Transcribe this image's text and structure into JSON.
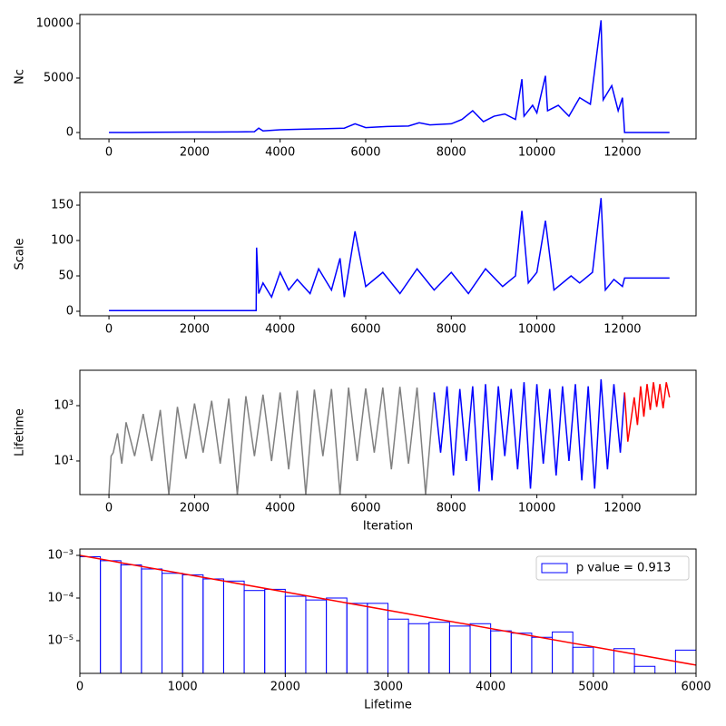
{
  "chart_data": [
    {
      "type": "line",
      "ylabel": "Nc",
      "xlim": [
        -680,
        13720
      ],
      "xticks": [
        0,
        2000,
        4000,
        6000,
        8000,
        10000,
        12000
      ],
      "ylim": [
        -580,
        10830
      ],
      "yticks": [
        0,
        5000,
        10000
      ],
      "series": [
        {
          "color": "#0000ff",
          "x": [
            0,
            500,
            1000,
            1500,
            2000,
            2500,
            3000,
            3400,
            3500,
            3600,
            4000,
            4500,
            5000,
            5500,
            5750,
            6000,
            6500,
            7000,
            7250,
            7500,
            8000,
            8250,
            8500,
            8750,
            9000,
            9250,
            9500,
            9650,
            9700,
            9900,
            10000,
            10200,
            10250,
            10500,
            10750,
            11000,
            11250,
            11500,
            11550,
            11750,
            11900,
            12000,
            12050,
            13100
          ],
          "values": [
            0,
            0,
            20,
            30,
            40,
            50,
            60,
            80,
            400,
            150,
            250,
            300,
            350,
            400,
            800,
            450,
            550,
            600,
            900,
            700,
            800,
            1200,
            2000,
            1000,
            1500,
            1700,
            1200,
            4900,
            1500,
            2500,
            1800,
            5200,
            2000,
            2500,
            1500,
            3200,
            2600,
            10300,
            3000,
            4300,
            2000,
            3200,
            0,
            0
          ]
        }
      ]
    },
    {
      "type": "line",
      "ylabel": "Scale",
      "xlim": [
        -680,
        13720
      ],
      "xticks": [
        0,
        2000,
        4000,
        6000,
        8000,
        10000,
        12000
      ],
      "ylim": [
        -6.4,
        168
      ],
      "yticks": [
        0,
        50,
        100,
        150
      ],
      "series": [
        {
          "color": "#0000ff",
          "x": [
            0,
            3440,
            3450,
            3500,
            3600,
            3800,
            4000,
            4200,
            4400,
            4700,
            4900,
            5200,
            5400,
            5500,
            5750,
            6000,
            6400,
            6800,
            7200,
            7600,
            8000,
            8400,
            8800,
            9200,
            9500,
            9650,
            9800,
            10000,
            10200,
            10400,
            10800,
            11000,
            11300,
            11500,
            11600,
            11800,
            12000,
            12050,
            13100
          ],
          "values": [
            1,
            1,
            90,
            25,
            40,
            20,
            55,
            30,
            45,
            25,
            60,
            30,
            75,
            20,
            113,
            35,
            55,
            25,
            60,
            30,
            55,
            25,
            60,
            35,
            50,
            142,
            40,
            55,
            128,
            30,
            50,
            40,
            55,
            160,
            30,
            45,
            35,
            47,
            47
          ]
        }
      ]
    },
    {
      "type": "line",
      "ylabel": "Lifetime",
      "xlabel": "Iteration",
      "yscale": "log",
      "xlim": [
        -680,
        13720
      ],
      "xticks": [
        0,
        2000,
        4000,
        6000,
        8000,
        10000,
        12000
      ],
      "ylim": [
        0.61,
        19000
      ],
      "yticks": [
        {
          "value": 10,
          "label": "10¹"
        },
        {
          "value": 1000,
          "label": "10³"
        }
      ],
      "series": [
        {
          "color": "#808080",
          "x": [
            0,
            50,
            100,
            200,
            300,
            400,
            600,
            800,
            1000,
            1200,
            1400,
            1600,
            1800,
            2000,
            2200,
            2400,
            2600,
            2800,
            3000,
            3200,
            3400,
            3600,
            3800,
            4000,
            4200,
            4400,
            4600,
            4800,
            5000,
            5200,
            5400,
            5600,
            5800,
            6000,
            6200,
            6400,
            6600,
            6800,
            7000,
            7200,
            7400,
            7600
          ],
          "values": [
            0.61,
            15,
            20,
            100,
            8,
            250,
            15,
            500,
            10,
            700,
            0.61,
            900,
            12,
            1200,
            20,
            1500,
            8,
            1800,
            0.61,
            2200,
            15,
            2500,
            10,
            3000,
            5,
            3500,
            0.61,
            3800,
            15,
            4000,
            0.61,
            4500,
            10,
            4200,
            20,
            4500,
            5,
            4800,
            8,
            4500,
            0.61,
            3000
          ]
        },
        {
          "color": "#0000ff",
          "x": [
            7600,
            7750,
            7900,
            8050,
            8200,
            8350,
            8500,
            8650,
            8800,
            8950,
            9100,
            9250,
            9400,
            9550,
            9700,
            9850,
            10000,
            10150,
            10300,
            10450,
            10600,
            10750,
            10900,
            11050,
            11200,
            11350,
            11500,
            11650,
            11800,
            11950,
            12050
          ],
          "values": [
            3000,
            20,
            5000,
            3,
            4000,
            10,
            5000,
            0.8,
            6000,
            2,
            5000,
            15,
            4000,
            5,
            7000,
            1,
            6000,
            8,
            4000,
            3,
            5000,
            10,
            6000,
            2,
            5000,
            1,
            9000,
            5,
            6000,
            20,
            3000
          ]
        },
        {
          "color": "#ff0000",
          "x": [
            12050,
            12125,
            12200,
            12275,
            12350,
            12425,
            12500,
            12575,
            12650,
            12725,
            12800,
            12875,
            12950,
            13025,
            13100
          ],
          "values": [
            3000,
            50,
            300,
            2000,
            200,
            5000,
            400,
            6000,
            700,
            7000,
            900,
            6000,
            800,
            7000,
            2000
          ]
        }
      ]
    },
    {
      "type": "histogram",
      "xlabel": "Lifetime",
      "yscale": "log",
      "xlim": [
        0,
        6000
      ],
      "xticks": [
        0,
        1000,
        2000,
        3000,
        4000,
        5000,
        6000
      ],
      "ylim": [
        1.71e-06,
        0.00141
      ],
      "yticks": [
        {
          "value": 1e-05,
          "label": "10⁻⁵"
        },
        {
          "value": 0.0001,
          "label": "10⁻⁴"
        },
        {
          "value": 0.001,
          "label": "10⁻³"
        }
      ],
      "name": "p value = 0.913",
      "color": "#0000ff",
      "legend": "upper right",
      "bins": [
        0,
        200,
        400,
        600,
        800,
        1000,
        1200,
        1400,
        1600,
        1800,
        2000,
        2200,
        2400,
        2600,
        2800,
        3000,
        3200,
        3400,
        3600,
        3800,
        4000,
        4200,
        4400,
        4600,
        4800,
        5000,
        5200,
        5400,
        5600,
        5800,
        6000
      ],
      "counts": [
        0.00093,
        0.00075,
        0.0006,
        0.00048,
        0.00038,
        0.00035,
        0.00028,
        0.00025,
        0.00015,
        0.00016,
        0.00011,
        9e-05,
        0.0001,
        7.5e-05,
        7.5e-05,
        3.2e-05,
        2.5e-05,
        2.7e-05,
        2.2e-05,
        2.5e-05,
        1.7e-05,
        1.5e-05,
        1.2e-05,
        1.6e-05,
        7e-06,
        0,
        6.5e-06,
        2.5e-06,
        0,
        6e-06
      ],
      "fit": {
        "color": "#ff0000",
        "x": [
          0,
          6000
        ],
        "values": [
          0.001,
          2.67e-06
        ]
      }
    }
  ]
}
